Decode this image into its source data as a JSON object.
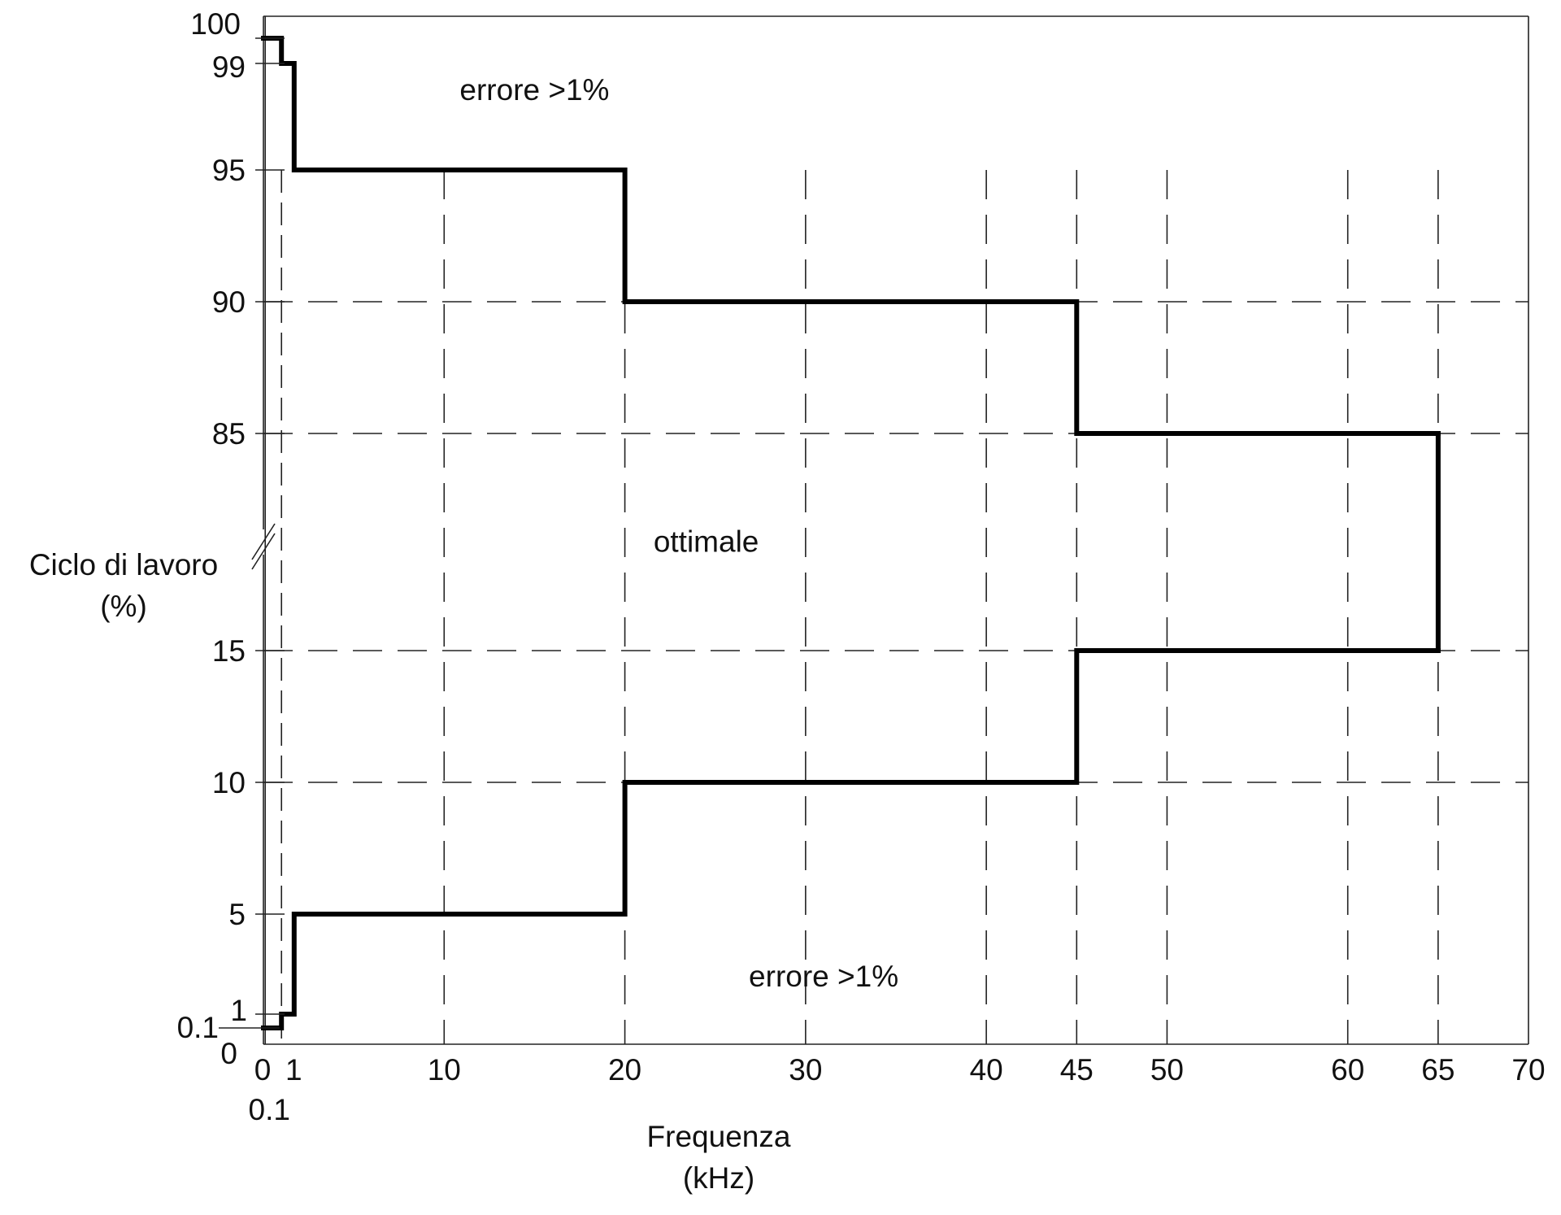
{
  "chart_data": {
    "type": "line",
    "xlabel": [
      "Frequenza",
      "(kHz)"
    ],
    "ylabel": [
      "Ciclo di lavoro",
      "(%)"
    ],
    "xlim": [
      0,
      70
    ],
    "y_axis_broken": true,
    "y_break_between": [
      15,
      85
    ],
    "x_ticks": [
      {
        "value": 0,
        "label": "0"
      },
      {
        "value": 0.1,
        "label": "0.1"
      },
      {
        "value": 1,
        "label": "1"
      },
      {
        "value": 10,
        "label": "10"
      },
      {
        "value": 20,
        "label": "20"
      },
      {
        "value": 30,
        "label": "30"
      },
      {
        "value": 40,
        "label": "40"
      },
      {
        "value": 45,
        "label": "45"
      },
      {
        "value": 50,
        "label": "50"
      },
      {
        "value": 60,
        "label": "60"
      },
      {
        "value": 65,
        "label": "65"
      },
      {
        "value": 70,
        "label": "70"
      }
    ],
    "y_ticks": [
      {
        "value": 0,
        "label": "0"
      },
      {
        "value": 0.1,
        "label": "0.1"
      },
      {
        "value": 1,
        "label": "1"
      },
      {
        "value": 5,
        "label": "5"
      },
      {
        "value": 10,
        "label": "10"
      },
      {
        "value": 15,
        "label": "15"
      },
      {
        "value": 85,
        "label": "85"
      },
      {
        "value": 90,
        "label": "90"
      },
      {
        "value": 95,
        "label": "95"
      },
      {
        "value": 99,
        "label": "99"
      },
      {
        "value": 100,
        "label": "100"
      }
    ],
    "series": [
      {
        "values": [
          [
            0,
            100
          ],
          [
            1,
            100
          ],
          [
            1,
            99
          ],
          [
            1.7,
            99
          ],
          [
            1.7,
            95
          ],
          [
            20,
            95
          ],
          [
            20,
            90
          ],
          [
            45,
            90
          ],
          [
            45,
            85
          ],
          [
            65,
            85
          ]
        ]
      },
      {
        "values": [
          [
            0,
            0.1
          ],
          [
            1,
            0.1
          ],
          [
            1,
            1
          ],
          [
            1.7,
            1
          ],
          [
            1.7,
            5
          ],
          [
            20,
            5
          ],
          [
            20,
            10
          ],
          [
            45,
            10
          ],
          [
            45,
            15
          ],
          [
            65,
            15
          ]
        ]
      },
      {
        "values": [
          [
            65,
            15
          ],
          [
            65,
            85
          ]
        ]
      }
    ],
    "annotations": [
      {
        "text": "errore >1%",
        "x": 15,
        "y": 98
      },
      {
        "text": "ottimale",
        "x": 24.5,
        "y": 50
      },
      {
        "text": "errore >1%",
        "x": 31,
        "y": 2.5
      }
    ],
    "grid": true,
    "grid_style": "dashed"
  }
}
